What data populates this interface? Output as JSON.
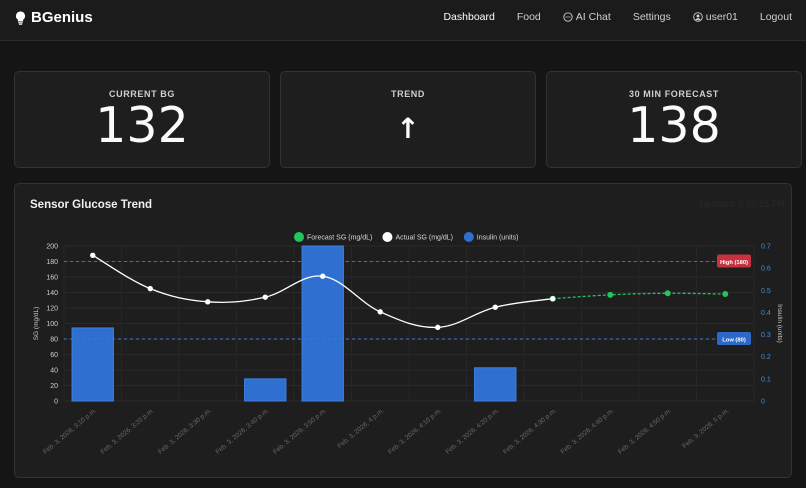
{
  "brand": {
    "name": "BGenius",
    "icon": "lightbulb-icon"
  },
  "nav": {
    "dashboard": "Dashboard",
    "food": "Food",
    "ai_chat": "AI Chat",
    "settings": "Settings",
    "user": "user01",
    "logout": "Logout"
  },
  "stats": {
    "current_bg": {
      "label": "CURRENT BG",
      "value": "132"
    },
    "trend": {
      "label": "TREND",
      "value": "↑"
    },
    "forecast": {
      "label": "30 MIN FORECAST",
      "value": "138"
    }
  },
  "chart_card": {
    "title": "Sensor Glucose Trend",
    "updated": "Updated: 5:00:15 PM"
  },
  "colors": {
    "forecast": "#22c55e",
    "actual": "#ffffff",
    "insulin": "#2f6fd0",
    "high": "#dc3545",
    "low": "#3a7bd5"
  },
  "chart_data": {
    "type": "bar+line",
    "categories": [
      "Feb. 3, 2026, 3:10 p.m.",
      "Feb. 3, 2026, 3:20 p.m.",
      "Feb. 3, 2026, 3:30 p.m.",
      "Feb. 3, 2026, 3:40 p.m.",
      "Feb. 3, 2026, 3:50 p.m.",
      "Feb. 3, 2026, 4 p.m.",
      "Feb. 3, 2026, 4:10 p.m.",
      "Feb. 3, 2026, 4:20 p.m.",
      "Feb. 3, 2026, 4:30 p.m.",
      "Feb. 3, 2026, 4:40 p.m.",
      "Feb. 3, 2026, 4:50 p.m.",
      "Feb. 3, 2026, 5 p.m."
    ],
    "series": [
      {
        "name": "Forecast SG (mg/dL)",
        "axis": "left",
        "values": [
          null,
          null,
          null,
          null,
          null,
          null,
          null,
          null,
          132,
          137,
          139,
          138
        ]
      },
      {
        "name": "Actual SG (mg/dL)",
        "axis": "left",
        "values": [
          188,
          145,
          128,
          134,
          161,
          115,
          95,
          121,
          132,
          null,
          null,
          null
        ]
      },
      {
        "name": "Insulin (units)",
        "axis": "right",
        "type": "bar",
        "values": [
          0.33,
          null,
          null,
          0.1,
          0.7,
          null,
          null,
          0.15,
          null,
          null,
          null,
          null
        ]
      }
    ],
    "ylabel": "SG (mg/dL)",
    "y2label": "Insulin (units)",
    "ylim": [
      0,
      200
    ],
    "y2lim": [
      0,
      0.7
    ],
    "yticks": [
      0,
      20,
      40,
      60,
      80,
      100,
      120,
      140,
      160,
      180,
      200
    ],
    "y2ticks": [
      0,
      0.1,
      0.2,
      0.3,
      0.4,
      0.5,
      0.6,
      0.7
    ],
    "thresholds": [
      {
        "label": "High (180)",
        "value": 180
      },
      {
        "label": "Low (80)",
        "value": 80
      }
    ],
    "legend": "top-center",
    "grid": true
  }
}
